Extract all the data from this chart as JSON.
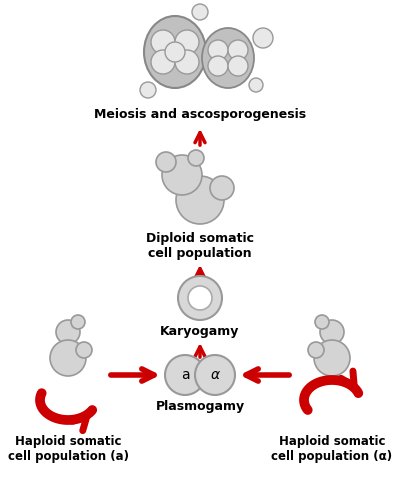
{
  "bg_color": "#ffffff",
  "cell_face": "#d4d4d4",
  "cell_face2": "#e8e8e8",
  "cell_edge": "#999999",
  "arrow_color": "#cc0000",
  "text_color": "#000000",
  "labels": {
    "meiosis": "Meiosis and ascosporogenesis",
    "diploid": "Diploid somatic\ncell population",
    "karyogamy": "Karyogamy",
    "plasmogamy": "Plasmogamy",
    "haploid_a": "Haploid somatic\ncell population (a)",
    "haploid_alpha": "Haploid somatic\ncell population (α)"
  },
  "layout": {
    "fig_w": 4.0,
    "fig_h": 5.0,
    "dpi": 100,
    "xlim": [
      0,
      400
    ],
    "ylim": [
      0,
      500
    ]
  }
}
